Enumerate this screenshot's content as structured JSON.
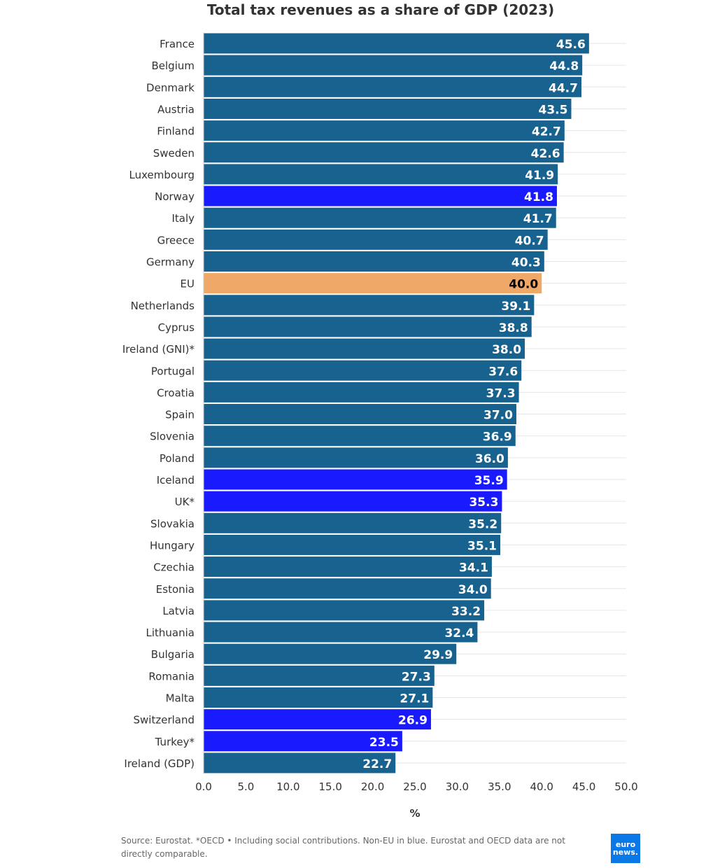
{
  "chart_data": {
    "type": "bar",
    "orientation": "horizontal",
    "title": "Total tax revenues as a share of GDP (2023)",
    "xlabel": "%",
    "ylabel": "",
    "xlim": [
      0,
      50
    ],
    "xticks": [
      "0.0",
      "5.0",
      "10.0",
      "15.0",
      "20.0",
      "25.0",
      "30.0",
      "35.0",
      "40.0",
      "45.0",
      "50.0"
    ],
    "grid": true,
    "categories": [
      "France",
      "Belgium",
      "Denmark",
      "Austria",
      "Finland",
      "Sweden",
      "Luxembourg",
      "Norway",
      "Italy",
      "Greece",
      "Germany",
      "EU",
      "Netherlands",
      "Cyprus",
      "Ireland (GNI)*",
      "Portugal",
      "Croatia",
      "Spain",
      "Slovenia",
      "Poland",
      "Iceland",
      "UK*",
      "Slovakia",
      "Hungary",
      "Czechia",
      "Estonia",
      "Latvia",
      "Lithuania",
      "Bulgaria",
      "Romania",
      "Malta",
      "Switzerland",
      "Turkey*",
      "Ireland (GDP)"
    ],
    "values": [
      45.6,
      44.8,
      44.7,
      43.5,
      42.7,
      42.6,
      41.9,
      41.8,
      41.7,
      40.7,
      40.3,
      40.0,
      39.1,
      38.8,
      38.0,
      37.6,
      37.3,
      37.0,
      36.9,
      36.0,
      35.9,
      35.3,
      35.2,
      35.1,
      34.1,
      34.0,
      33.2,
      32.4,
      29.9,
      27.3,
      27.1,
      26.9,
      23.5,
      22.7
    ],
    "groups": [
      "eu",
      "eu",
      "eu",
      "eu",
      "eu",
      "eu",
      "eu",
      "non-eu",
      "eu",
      "eu",
      "eu",
      "eu-average",
      "eu",
      "eu",
      "eu",
      "eu",
      "eu",
      "eu",
      "eu",
      "eu",
      "non-eu",
      "non-eu",
      "eu",
      "eu",
      "eu",
      "eu",
      "eu",
      "eu",
      "eu",
      "eu",
      "eu",
      "non-eu",
      "non-eu",
      "eu"
    ]
  },
  "colors": {
    "eu": "#17628f",
    "non-eu": "#1a1aff",
    "eu-average": "#f0a868",
    "grid": "#e6e6e6"
  },
  "source": "Source: Eurostat. *OECD • Including social contributions. Non-EU in blue. Eurostat and OECD data are not directly comparable.",
  "logo": {
    "line1": "euro",
    "line2": "news."
  }
}
